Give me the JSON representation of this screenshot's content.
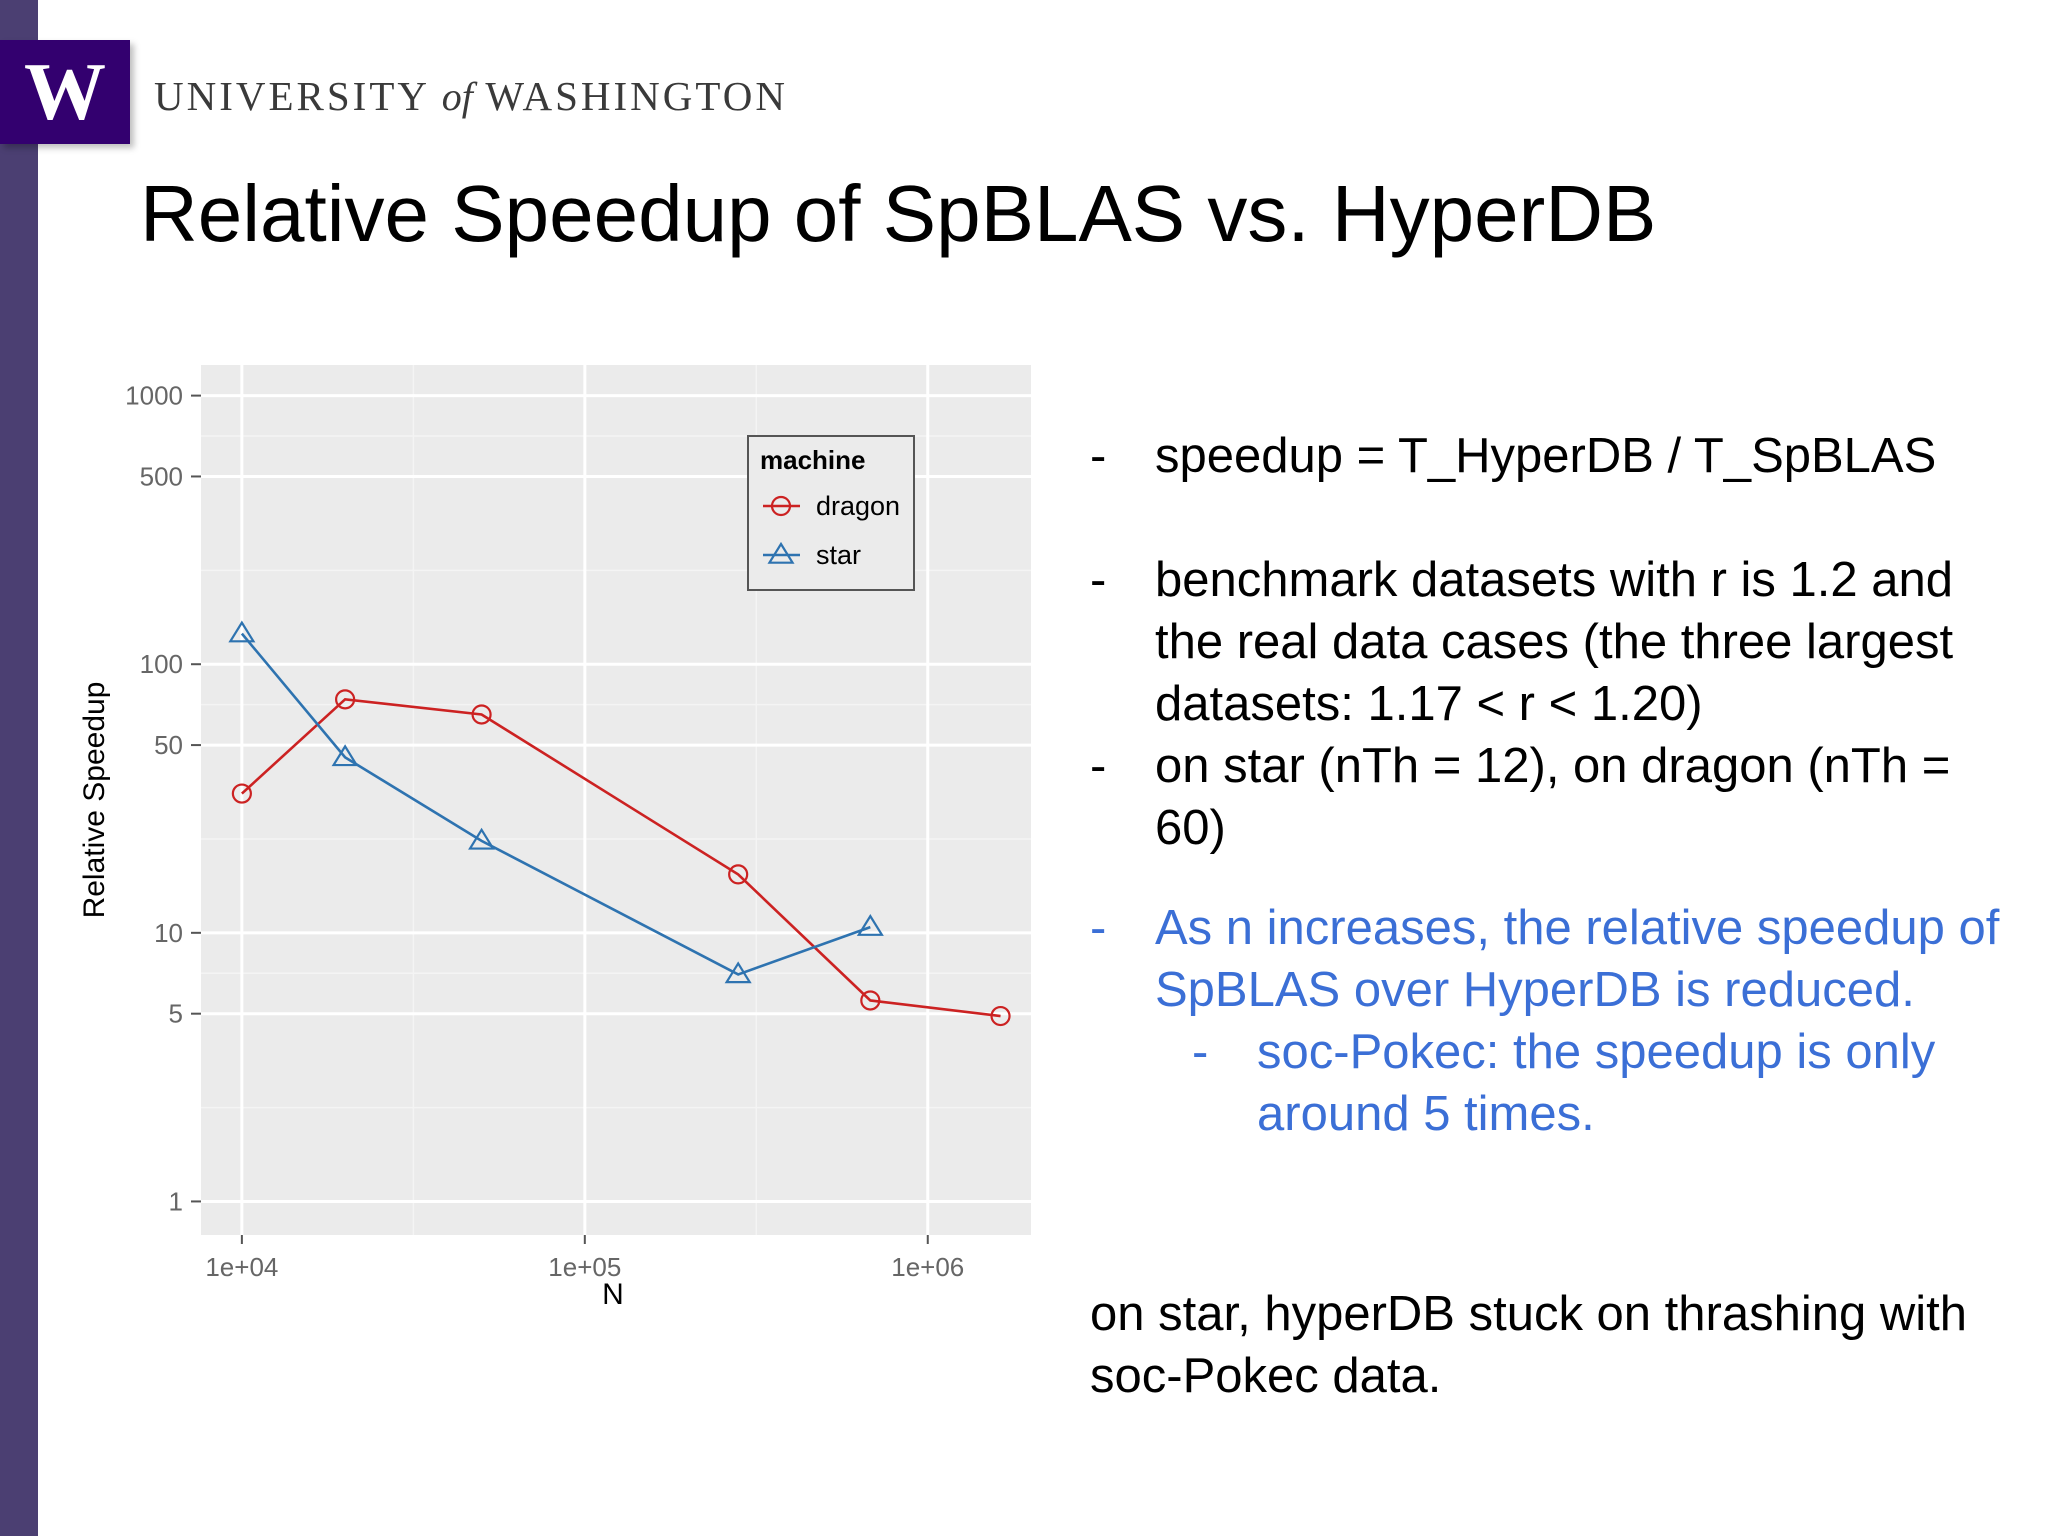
{
  "header": {
    "logo_letter": "W",
    "university_prefix": "UNIVERSITY",
    "university_of": "of",
    "university_suffix": "WASHINGTON"
  },
  "slide": {
    "title": "Relative Speedup of SpBLAS vs. HyperDB"
  },
  "bullets": [
    {
      "dash": "-",
      "text": "speedup = T_HyperDB / T_SpBLAS"
    },
    {
      "dash": "-",
      "text": "benchmark datasets with r is 1.2 and the real data cases (the three largest datasets: 1.17 < r < 1.20)"
    },
    {
      "dash": "-",
      "text": "on star (nTh = 12), on dragon (nTh = 60)"
    },
    {
      "dash": "-",
      "text": "As n increases, the relative speedup of SpBLAS over HyperDB is reduced."
    },
    {
      "dash": "-",
      "text": "soc-Pokec: the speedup is only around 5 times."
    }
  ],
  "closing_note": "on star, hyperDB stuck on thrashing with soc-Pokec data.",
  "colors": {
    "dragon": "#cc2222",
    "star": "#2e73b0",
    "panel": "#ebebeb",
    "highlight_text": "#3b6fd6",
    "brand": "#33006f"
  },
  "chart_data": {
    "type": "line",
    "title": "",
    "xlabel": "N",
    "ylabel": "Relative Speedup",
    "x_scale": "log10",
    "y_scale": "log10",
    "xlim": [
      7600,
      2000000
    ],
    "ylim": [
      0.75,
      1300
    ],
    "x_ticks": [
      10000,
      100000,
      1000000
    ],
    "x_tick_labels": [
      "1e+04",
      "1e+05",
      "1e+06"
    ],
    "y_ticks": [
      1,
      5,
      10,
      50,
      100,
      500,
      1000
    ],
    "y_tick_labels": [
      "1",
      "5",
      "10",
      "50",
      "100",
      "500",
      "1000"
    ],
    "grid": true,
    "legend": {
      "title": "machine",
      "position": "top-right"
    },
    "series": [
      {
        "name": "dragon",
        "marker": "circle",
        "x": [
          10000,
          20000,
          50000,
          280000,
          680000,
          1630000
        ],
        "y": [
          33,
          74,
          65,
          16.5,
          5.6,
          4.9
        ]
      },
      {
        "name": "star",
        "marker": "triangle",
        "x": [
          10000,
          20000,
          50000,
          280000,
          680000
        ],
        "y": [
          130,
          45,
          22,
          7,
          10.5
        ]
      }
    ]
  }
}
